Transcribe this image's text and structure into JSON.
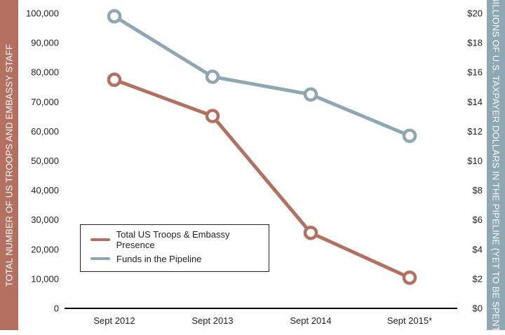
{
  "left_band_label": "TOTAL NUMBER OF US TROOPS AND  EMBASSY STAFF",
  "right_band_label": "BILLIONS OF U.S. TAXPAYER DOLLARS IN THE PIPELINE (YET TO BE SPENT)",
  "colors": {
    "troops": "#b36f60",
    "funds": "#8fa6b3",
    "left_band": "#b36f60",
    "right_band": "#8fa6b3"
  },
  "chart_data": {
    "type": "line",
    "categories": [
      "Sept 2012",
      "Sept 2013",
      "Sept 2014",
      "Sept 2015*"
    ],
    "left_axis": {
      "label": "TOTAL NUMBER OF US TROOPS AND  EMBASSY STAFF",
      "range": [
        0,
        100000
      ],
      "ticks": [
        "0",
        "10,000",
        "20,000",
        "30,000",
        "40,000",
        "50,000",
        "60,000",
        "70,000",
        "80,000",
        "90,000",
        "100,000"
      ]
    },
    "right_axis": {
      "label": "BILLIONS OF U.S. TAXPAYER DOLLARS IN THE PIPELINE (YET TO BE SPENT)",
      "range": [
        0,
        20
      ],
      "ticks": [
        "$0",
        "$2",
        "$4",
        "$6",
        "$8",
        "$10",
        "$12",
        "$14",
        "$16",
        "$18",
        "$20"
      ]
    },
    "series": [
      {
        "name": "Total US Troops & Embassy Presence",
        "axis": "left",
        "values": [
          77500,
          65200,
          25600,
          10400
        ]
      },
      {
        "name": "Funds in the Pipeline",
        "axis": "right",
        "values": [
          19.8,
          15.7,
          14.5,
          11.7
        ]
      }
    ],
    "legend_position": "bottom-left",
    "grid": false
  }
}
